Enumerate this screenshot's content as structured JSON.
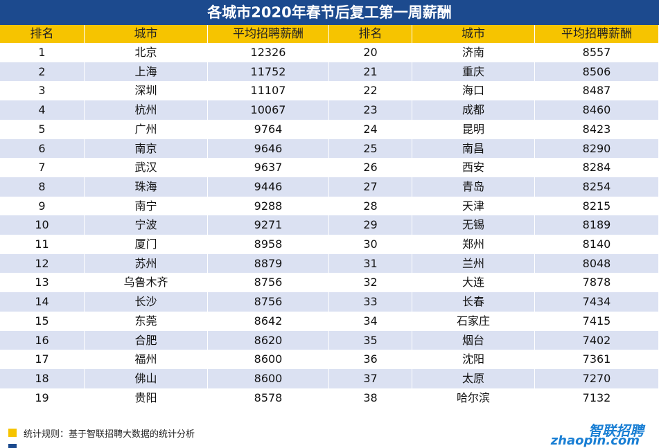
{
  "title": "各城市2020年春节后复工第一周薪酬",
  "table": {
    "header": [
      "排名",
      "城市",
      "平均招聘薪酬",
      "排名",
      "城市",
      "平均招聘薪酬"
    ],
    "rows": [
      [
        1,
        "北京",
        12326,
        20,
        "济南",
        8557
      ],
      [
        2,
        "上海",
        11752,
        21,
        "重庆",
        8506
      ],
      [
        3,
        "深圳",
        11107,
        22,
        "海口",
        8487
      ],
      [
        4,
        "杭州",
        10067,
        23,
        "成都",
        8460
      ],
      [
        5,
        "广州",
        9764,
        24,
        "昆明",
        8423
      ],
      [
        6,
        "南京",
        9646,
        25,
        "南昌",
        8290
      ],
      [
        7,
        "武汉",
        9637,
        26,
        "西安",
        8284
      ],
      [
        8,
        "珠海",
        9446,
        27,
        "青岛",
        8254
      ],
      [
        9,
        "南宁",
        9288,
        28,
        "天津",
        8215
      ],
      [
        10,
        "宁波",
        9271,
        29,
        "无锡",
        8189
      ],
      [
        11,
        "厦门",
        8958,
        30,
        "郑州",
        8140
      ],
      [
        12,
        "苏州",
        8879,
        31,
        "兰州",
        8048
      ],
      [
        13,
        "乌鲁木齐",
        8756,
        32,
        "大连",
        7878
      ],
      [
        14,
        "长沙",
        8756,
        33,
        "长春",
        7434
      ],
      [
        15,
        "东莞",
        8642,
        34,
        "石家庄",
        7415
      ],
      [
        16,
        "合肥",
        8620,
        35,
        "烟台",
        7402
      ],
      [
        17,
        "福州",
        8600,
        36,
        "沈阳",
        7361
      ],
      [
        18,
        "佛山",
        8600,
        37,
        "太原",
        7270
      ],
      [
        19,
        "贵阳",
        8578,
        38,
        "哈尔滨",
        7132
      ]
    ]
  },
  "footer": {
    "note": "统计规则：基于智联招聘大数据的统计分析",
    "logo_cn": "智联招聘",
    "logo_en": "zhaopin.com"
  }
}
